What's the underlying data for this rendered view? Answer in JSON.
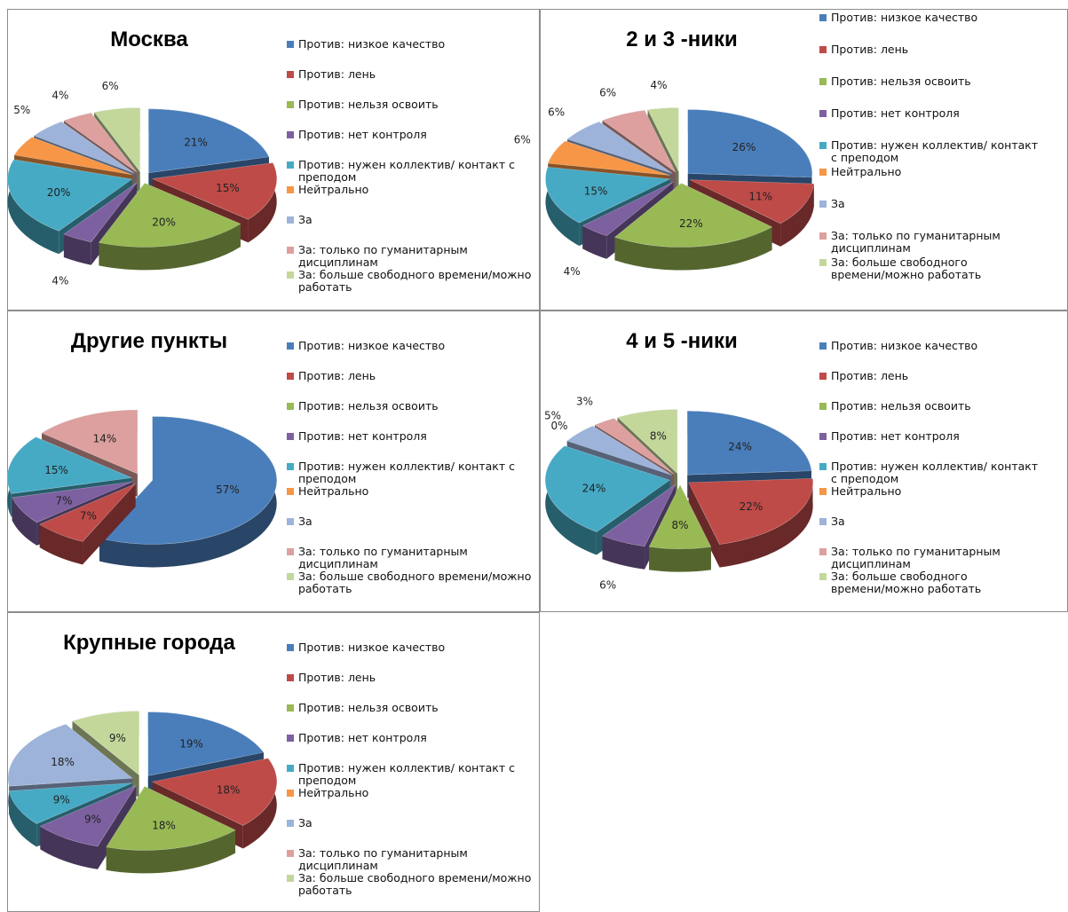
{
  "legend_labels": [
    "Против: низкое качество",
    "Против: лень",
    "Против: нельзя освоить",
    "Против: нет контроля",
    "Против: нужен коллектив/ контакт с преподом",
    "Нейтрально",
    "За",
    "За: только по гуманитарным дисциплинам",
    "За: больше свободного времени/можно работать"
  ],
  "series_colors": [
    "#4A7EBB",
    "#BE4B48",
    "#98B954",
    "#7D60A0",
    "#46AAC5",
    "#F79646",
    "#9DB3DA",
    "#DDA09F",
    "#C4D79B"
  ],
  "chart_data": [
    {
      "type": "pie",
      "title": "Москва",
      "categories": [
        "Против: низкое качество",
        "Против: лень",
        "Против: нельзя освоить",
        "Против: нет контроля",
        "Против: нужен коллектив/ контакт с преподом",
        "Нейтрально",
        "За",
        "За: только по гуманитарным дисциплинам",
        "За: больше свободного времени/можно работать"
      ],
      "values": [
        21,
        15,
        20,
        4,
        20,
        5,
        5,
        4,
        6
      ],
      "data_labels": [
        "21%",
        "15%",
        "20%",
        "4%",
        "20%",
        "5%",
        "5%",
        "4%",
        "6%"
      ],
      "exploded": true,
      "legend": "right"
    },
    {
      "type": "pie",
      "title": "2 и 3 -ники",
      "categories": [
        "Против: низкое качество",
        "Против: лень",
        "Против: нельзя освоить",
        "Против: нет контроля",
        "Против: нужен коллектив/ контакт с преподом",
        "Нейтрально",
        "За",
        "За: только по гуманитарным дисциплинам",
        "За: больше свободного времени/можно работать"
      ],
      "values": [
        26,
        11,
        22,
        4,
        15,
        6,
        6,
        6,
        4
      ],
      "data_labels": [
        "26%",
        "11%",
        "22%",
        "4%",
        "15%",
        "6%",
        "6%",
        "6%",
        "4%"
      ],
      "exploded": true,
      "legend": "right"
    },
    {
      "type": "pie",
      "title": "Другие пункты",
      "categories": [
        "Против: низкое качество",
        "Против: лень",
        "Против: нельзя освоить",
        "Против: нет контроля",
        "Против: нужен коллектив/ контакт с преподом",
        "Нейтрально",
        "За",
        "За: только по гуманитарным дисциплинам",
        "За: больше свободного времени/можно работать"
      ],
      "values": [
        57,
        7,
        0,
        7,
        15,
        0,
        0,
        14,
        0
      ],
      "data_labels": [
        "57%",
        "7%",
        "",
        "7%",
        "15%",
        "",
        "",
        "14%",
        ""
      ],
      "exploded": true,
      "legend": "right"
    },
    {
      "type": "pie",
      "title": "4 и 5 -ники",
      "categories": [
        "Против: низкое качество",
        "Против: лень",
        "Против: нельзя освоить",
        "Против: нет контроля",
        "Против: нужен коллектив/ контакт с преподом",
        "Нейтрально",
        "За",
        "За: только по гуманитарным дисциплинам",
        "За: больше свободного времени/можно работать"
      ],
      "values": [
        24,
        22,
        8,
        6,
        24,
        0,
        5,
        3,
        8
      ],
      "data_labels": [
        "24%",
        "22%",
        "8%",
        "6%",
        "24%",
        "0%",
        "5%",
        "3%",
        "8%"
      ],
      "exploded": true,
      "legend": "right"
    },
    {
      "type": "pie",
      "title": "Крупные города",
      "categories": [
        "Против: низкое качество",
        "Против: лень",
        "Против: нельзя освоить",
        "Против: нет контроля",
        "Против: нужен коллектив/ контакт с преподом",
        "Нейтрально",
        "За",
        "За: только по гуманитарным дисциплинам",
        "За: больше свободного времени/можно работать"
      ],
      "values": [
        19,
        18,
        18,
        9,
        9,
        0,
        18,
        0,
        9
      ],
      "data_labels": [
        "19%",
        "18%",
        "18%",
        "9%",
        "9%",
        "",
        "18%",
        "",
        "9%"
      ],
      "exploded": true,
      "legend": "right"
    }
  ]
}
